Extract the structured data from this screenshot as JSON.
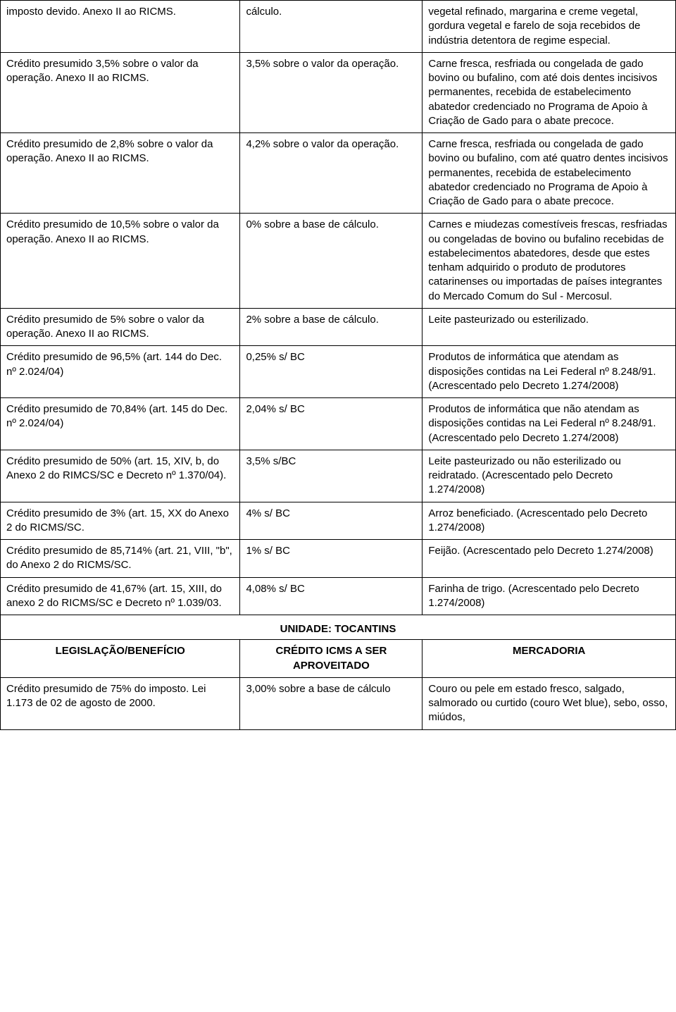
{
  "table": {
    "col_widths_pct": [
      35.5,
      27,
      37.5
    ],
    "border_color": "#000000",
    "font_family": "Arial",
    "font_size_pt": 11,
    "rows": [
      {
        "c1": "imposto devido. Anexo II ao RICMS.",
        "c2": "cálculo.",
        "c3": "vegetal refinado, margarina e creme vegetal, gordura vegetal e farelo de soja recebidos de indústria detentora de regime especial."
      },
      {
        "c1": "Crédito presumido 3,5% sobre o valor da operação. Anexo II ao RICMS.",
        "c2": "3,5% sobre o valor da operação.",
        "c3": "Carne fresca, resfriada ou congelada de gado bovino ou bufalino, com até dois dentes incisivos permanentes, recebida de estabelecimento abatedor credenciado no Programa de Apoio à Criação de Gado para o abate precoce."
      },
      {
        "c1": "Crédito presumido de 2,8% sobre o valor da operação. Anexo II ao RICMS.",
        "c2": "4,2% sobre o valor da operação.",
        "c3": "Carne fresca, resfriada ou congelada de gado bovino ou bufalino, com até quatro dentes incisivos permanentes, recebida de estabelecimento abatedor credenciado no Programa de Apoio à Criação de Gado para o abate precoce."
      },
      {
        "c1": "Crédito presumido de 10,5% sobre o valor da operação. Anexo II ao RICMS.",
        "c2": "0% sobre a base de cálculo.",
        "c3": "Carnes e miudezas comestíveis frescas, resfriadas ou congeladas de bovino ou bufalino recebidas de estabelecimentos abatedores, desde que estes tenham adquirido o produto de produtores catarinenses ou importadas de países integrantes do Mercado Comum do Sul - Mercosul."
      },
      {
        "c1": "Crédito presumido de 5% sobre o valor da operação. Anexo II ao RICMS.",
        "c2": "2% sobre a base de cálculo.",
        "c3": "Leite pasteurizado ou esterilizado."
      },
      {
        "c1": "Crédito presumido de 96,5% (art. 144 do Dec. nº 2.024/04)",
        "c2": "0,25% s/ BC",
        "c3": "Produtos de informática que atendam as disposições contidas na Lei Federal nº 8.248/91. (Acrescentado pelo Decreto 1.274/2008)"
      },
      {
        "c1": "Crédito presumido de 70,84% (art. 145 do Dec. nº 2.024/04)",
        "c2": "2,04% s/ BC",
        "c3": "Produtos de informática que não atendam as disposições contidas na Lei Federal nº 8.248/91. (Acrescentado pelo Decreto 1.274/2008)"
      },
      {
        "c1": "Crédito presumido de 50% (art. 15, XIV, b, do Anexo 2 do RIMCS/SC e Decreto nº 1.370/04).",
        "c2": "3,5% s/BC",
        "c3": "Leite pasteurizado ou não esterilizado ou reidratado. (Acrescentado pelo Decreto 1.274/2008)"
      },
      {
        "c1": "Crédito presumido de 3% (art. 15, XX do Anexo 2 do RICMS/SC.",
        "c2": "4% s/ BC",
        "c3": "Arroz beneficiado. (Acrescentado pelo Decreto 1.274/2008)"
      },
      {
        "c1": "Crédito presumido de 85,714% (art. 21, VIII, \"b\", do Anexo 2 do RICMS/SC.",
        "c2": "1% s/ BC",
        "c3": "Feijão. (Acrescentado pelo Decreto 1.274/2008)"
      },
      {
        "c1": "Crédito presumido de 41,67% (art. 15, XIII, do anexo 2 do RICMS/SC e Decreto nº 1.039/03.",
        "c2": "4,08% s/ BC",
        "c3": "Farinha de trigo. (Acrescentado pelo Decreto 1.274/2008)"
      }
    ],
    "section": {
      "title": "UNIDADE: TOCANTINS",
      "headers": {
        "c1": "LEGISLAÇÃO/BENEFÍCIO",
        "c2": "CRÉDITO ICMS A SER APROVEITADO",
        "c3": "MERCADORIA"
      },
      "row": {
        "c1": "Crédito presumido de 75% do imposto. Lei 1.173 de 02 de agosto de 2000.",
        "c2": "3,00% sobre a base de cálculo",
        "c3": "Couro ou pele em estado fresco, salgado, salmorado ou curtido (couro Wet blue), sebo, osso, miúdos,"
      }
    }
  }
}
